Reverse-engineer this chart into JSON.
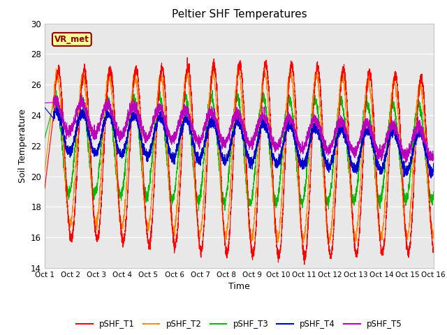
{
  "title": "Peltier SHF Temperatures",
  "xlabel": "Time",
  "ylabel": "Soil Temperature",
  "ylim": [
    14,
    30
  ],
  "xlim": [
    0,
    15
  ],
  "plot_bg_color": "#e8e8e8",
  "fig_bg_color": "#ffffff",
  "colors": {
    "pSHF_T1": "#ff0000",
    "pSHF_T2": "#ff8c00",
    "pSHF_T3": "#00bb00",
    "pSHF_T4": "#0000cc",
    "pSHF_T5": "#bb00bb"
  },
  "annotation_text": "VR_met",
  "tick_labels": [
    "Oct 1",
    "Oct 2",
    "Oct 3",
    "Oct 4",
    "Oct 5",
    "Oct 6",
    "Oct 7",
    "Oct 8",
    "Oct 9",
    "Oct 10",
    "Oct 11",
    "Oct 12",
    "Oct 13",
    "Oct 14",
    "Oct 15",
    "Oct 16"
  ],
  "yticks": [
    14,
    16,
    18,
    20,
    22,
    24,
    26,
    28,
    30
  ]
}
